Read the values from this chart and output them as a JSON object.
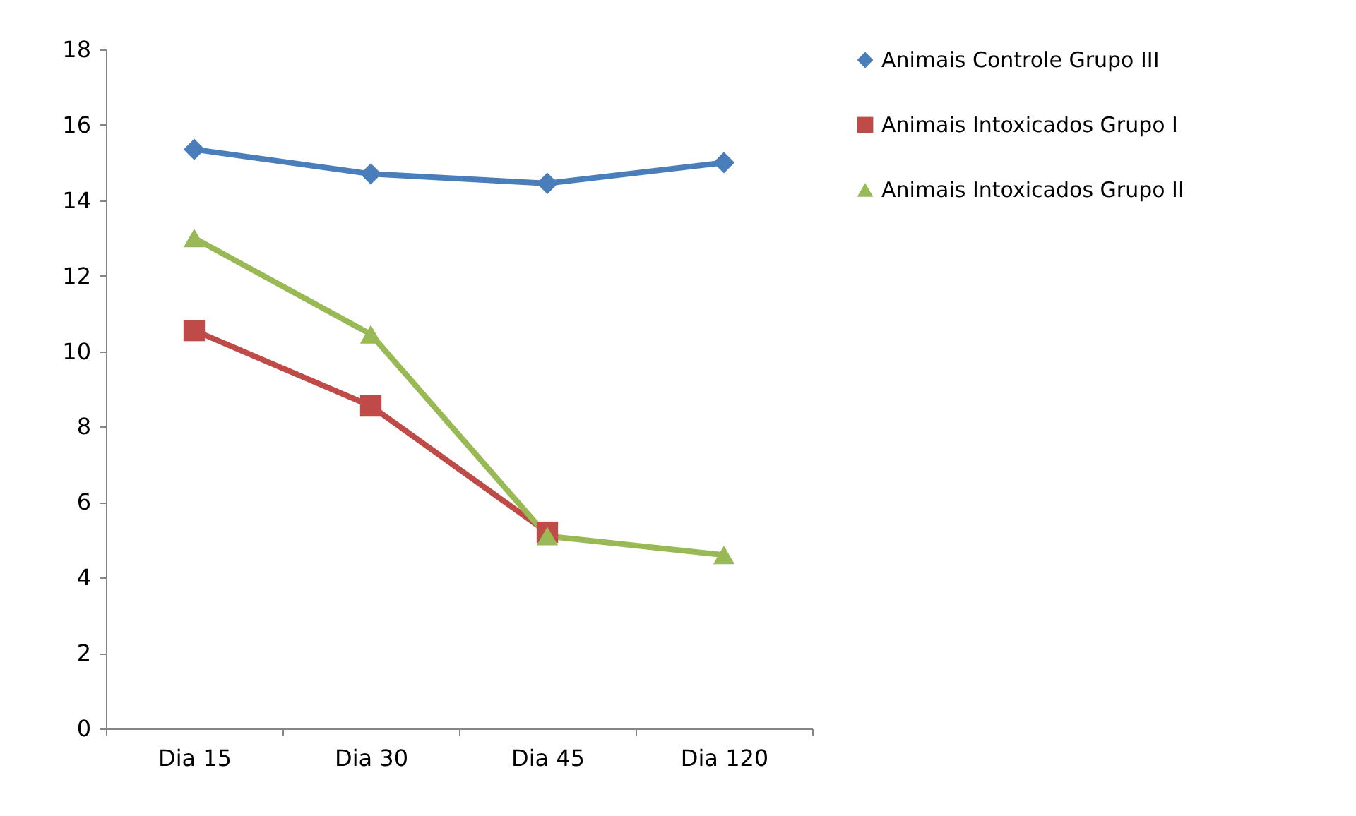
{
  "chart_data": {
    "type": "line",
    "categories": [
      "Dia 15",
      "Dia 30",
      "Dia 45",
      "Dia 120"
    ],
    "series": [
      {
        "name": "Animais Controle Grupo III",
        "color": "#4a7ebb",
        "marker": "diamond",
        "values": [
          15.35,
          14.7,
          14.45,
          15.0
        ]
      },
      {
        "name": "Animais Intoxicados Grupo I",
        "color": "#be4b48",
        "marker": "square",
        "values": [
          10.55,
          8.55,
          5.2,
          null
        ]
      },
      {
        "name": "Animais Intoxicados Grupo II",
        "color": "#98b954",
        "marker": "triangle",
        "values": [
          13.0,
          10.45,
          5.1,
          4.6
        ]
      }
    ],
    "ylim": [
      0,
      18
    ],
    "yticks": [
      0,
      2,
      4,
      6,
      8,
      10,
      12,
      14,
      16,
      18
    ],
    "grid": false,
    "legend": "right"
  }
}
